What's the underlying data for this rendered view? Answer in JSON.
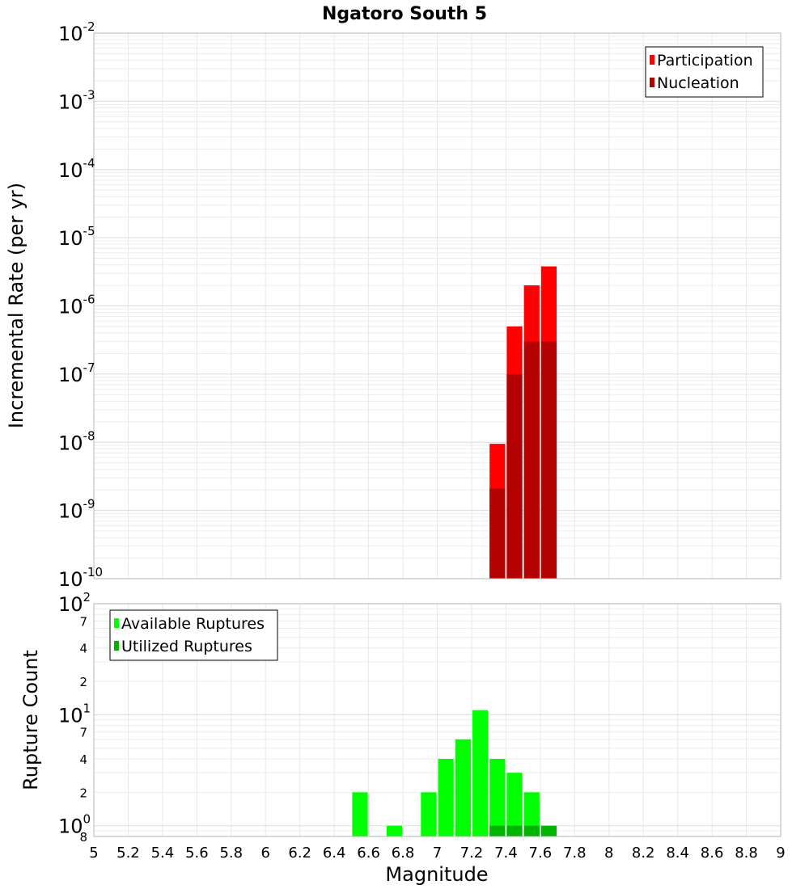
{
  "chart_data": [
    {
      "type": "bar",
      "title": "Ngatoro South 5",
      "xlabel": "",
      "ylabel": "Incremental Rate (per yr)",
      "y_scale": "log",
      "ylim": [
        1e-10,
        0.01
      ],
      "grid": true,
      "legend_position": "top-right",
      "legend": [
        {
          "name": "Participation",
          "color": "#ff0000"
        },
        {
          "name": "Nucleation",
          "color": "#b30000"
        }
      ],
      "bin_width": 0.1,
      "series": [
        {
          "name": "Participation",
          "color": "#ff0000",
          "x": [
            7.35,
            7.45,
            7.55,
            7.65
          ],
          "values": [
            9.5e-09,
            5e-07,
            2e-06,
            3.8e-06
          ]
        },
        {
          "name": "Nucleation",
          "color": "#b30000",
          "x": [
            7.35,
            7.45,
            7.55,
            7.65
          ],
          "values": [
            2.1e-09,
            1e-07,
            3e-07,
            3e-07
          ]
        }
      ],
      "y_ticks": [
        {
          "base": "10",
          "exp": "-10"
        },
        {
          "base": "10",
          "exp": "-9"
        },
        {
          "base": "10",
          "exp": "-8"
        },
        {
          "base": "10",
          "exp": "-7"
        },
        {
          "base": "10",
          "exp": "-6"
        },
        {
          "base": "10",
          "exp": "-5"
        },
        {
          "base": "10",
          "exp": "-4"
        },
        {
          "base": "10",
          "exp": "-3"
        },
        {
          "base": "10",
          "exp": "-2"
        }
      ]
    },
    {
      "type": "bar",
      "title": "",
      "xlabel": "Magnitude",
      "ylabel": "Rupture Count",
      "y_scale": "log",
      "ylim": [
        0.8,
        100
      ],
      "xlim": [
        5,
        9
      ],
      "grid": true,
      "legend_position": "top-left",
      "legend": [
        {
          "name": "Available Ruptures",
          "color": "#00ff00"
        },
        {
          "name": "Utilized Ruptures",
          "color": "#00b300"
        }
      ],
      "bin_width": 0.1,
      "series": [
        {
          "name": "Available Ruptures",
          "color": "#00ff00",
          "x": [
            6.55,
            6.75,
            6.95,
            7.05,
            7.15,
            7.25,
            7.35,
            7.45,
            7.55
          ],
          "values": [
            2,
            1,
            2,
            4,
            6,
            11,
            4,
            3,
            2
          ]
        },
        {
          "name": "Utilized Ruptures",
          "color": "#00b300",
          "x": [
            7.35,
            7.45,
            7.55,
            7.65
          ],
          "values": [
            1,
            1,
            1,
            1
          ]
        }
      ],
      "x_ticks": [
        "5",
        "5.2",
        "5.4",
        "5.6",
        "5.8",
        "6",
        "6.2",
        "6.4",
        "6.6",
        "6.8",
        "7",
        "7.2",
        "7.4",
        "7.6",
        "7.8",
        "8",
        "8.2",
        "8.4",
        "8.6",
        "8.8",
        "9"
      ],
      "y_major_ticks": [
        {
          "base": "10",
          "exp": "0"
        },
        {
          "base": "10",
          "exp": "1"
        },
        {
          "base": "10",
          "exp": "2"
        }
      ],
      "y_minor_ticks": [
        {
          "value": 2,
          "label": "2"
        },
        {
          "value": 4,
          "label": "4"
        },
        {
          "value": 7,
          "label": "7"
        },
        {
          "value": 20,
          "label": "2"
        },
        {
          "value": 40,
          "label": "4"
        },
        {
          "value": 70,
          "label": "7"
        }
      ],
      "y_bottom_label": "8"
    }
  ]
}
